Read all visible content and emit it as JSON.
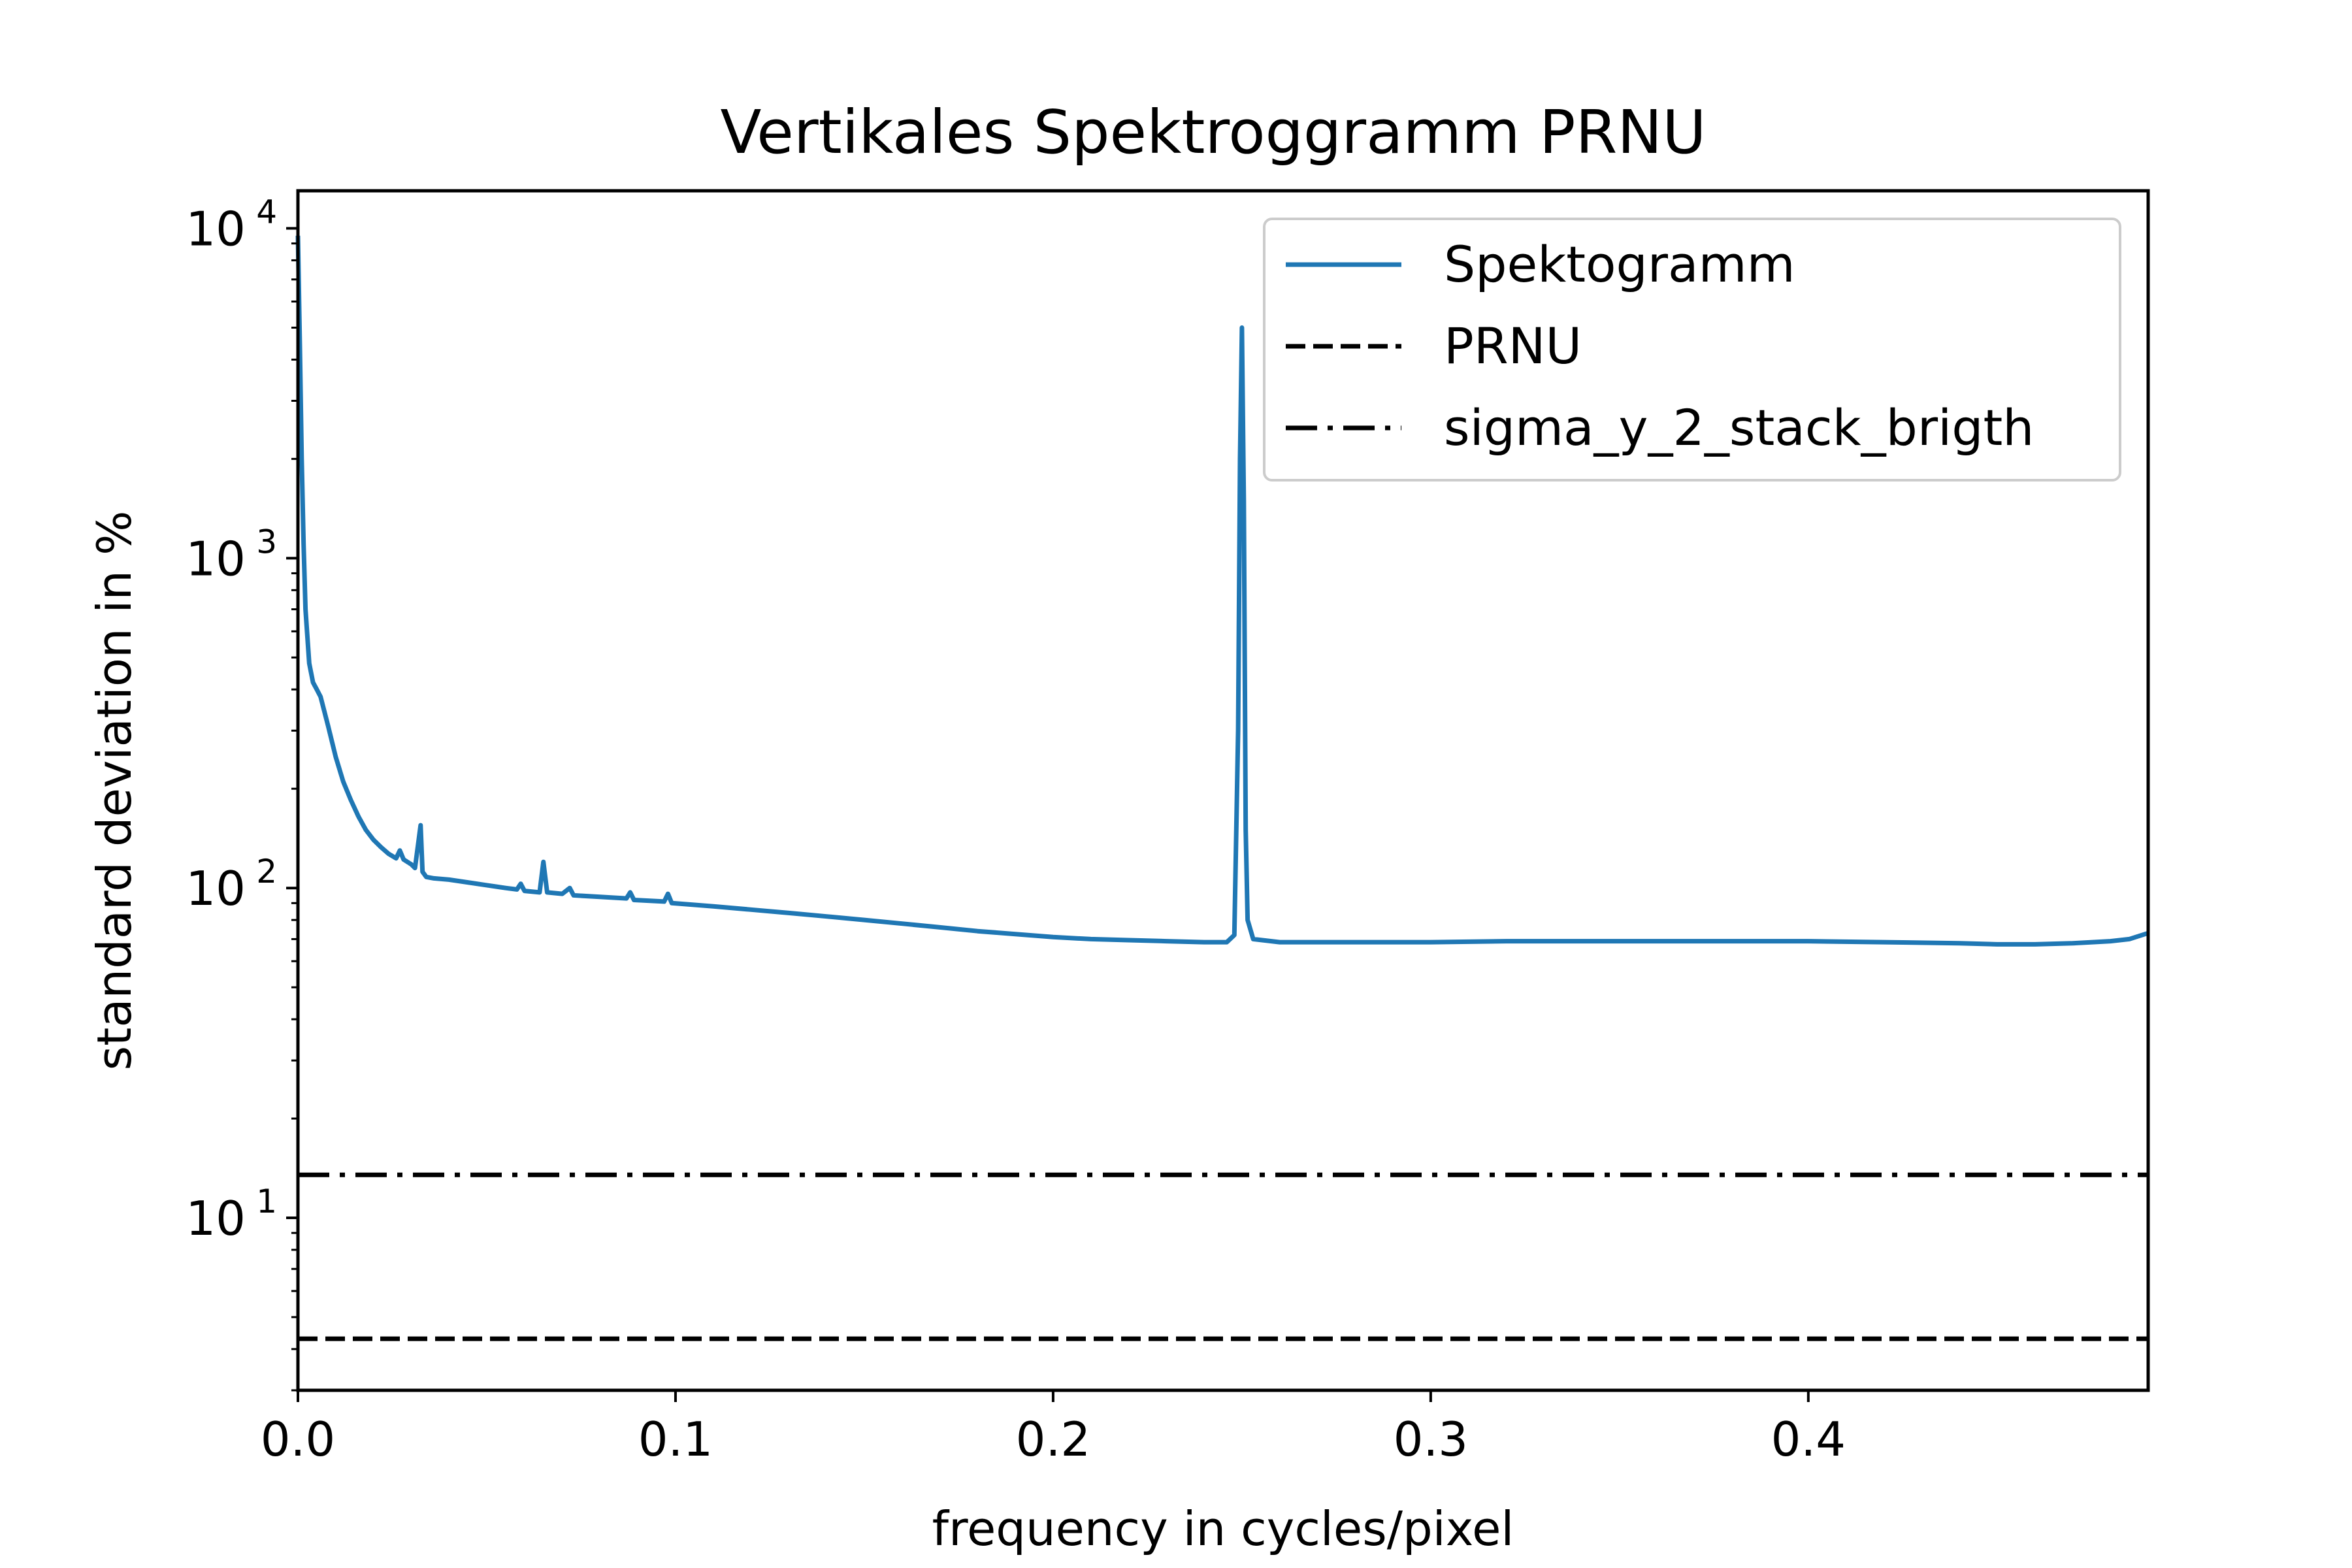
{
  "chart_data": {
    "type": "line",
    "title": "Vertikales Spektroggramm PRNU",
    "xlabel": "frequency in cycles/pixel",
    "ylabel": "standard deviation in %",
    "xlim": [
      0,
      0.49
    ],
    "ylim": [
      3,
      13000
    ],
    "yscale": "log",
    "grid": false,
    "legend_position": "top-right",
    "x_ticks": [
      {
        "value": 0.0,
        "label": "0.0"
      },
      {
        "value": 0.1,
        "label": "0.1"
      },
      {
        "value": 0.2,
        "label": "0.2"
      },
      {
        "value": 0.3,
        "label": "0.3"
      },
      {
        "value": 0.4,
        "label": "0.4"
      }
    ],
    "y_ticks": [
      {
        "value": 10,
        "base": "10",
        "exp": "1"
      },
      {
        "value": 100,
        "base": "10",
        "exp": "2"
      },
      {
        "value": 1000,
        "base": "10",
        "exp": "3"
      },
      {
        "value": 10000,
        "base": "10",
        "exp": "4"
      }
    ],
    "series": [
      {
        "name": "Spektogramm",
        "style": "solid",
        "color": "#1f77b4",
        "points": [
          [
            0.0,
            9500
          ],
          [
            0.0005,
            4500
          ],
          [
            0.001,
            2000
          ],
          [
            0.0015,
            1100
          ],
          [
            0.002,
            700
          ],
          [
            0.003,
            480
          ],
          [
            0.004,
            420
          ],
          [
            0.005,
            400
          ],
          [
            0.006,
            380
          ],
          [
            0.008,
            310
          ],
          [
            0.01,
            250
          ],
          [
            0.012,
            210
          ],
          [
            0.014,
            185
          ],
          [
            0.016,
            165
          ],
          [
            0.018,
            150
          ],
          [
            0.02,
            140
          ],
          [
            0.022,
            133
          ],
          [
            0.024,
            127
          ],
          [
            0.026,
            123
          ],
          [
            0.027,
            130
          ],
          [
            0.028,
            122
          ],
          [
            0.03,
            118
          ],
          [
            0.031,
            115
          ],
          [
            0.0325,
            155
          ],
          [
            0.033,
            112
          ],
          [
            0.034,
            108
          ],
          [
            0.036,
            107
          ],
          [
            0.04,
            106
          ],
          [
            0.045,
            104
          ],
          [
            0.05,
            102
          ],
          [
            0.055,
            100
          ],
          [
            0.058,
            99
          ],
          [
            0.059,
            103
          ],
          [
            0.06,
            98
          ],
          [
            0.064,
            97
          ],
          [
            0.065,
            120
          ],
          [
            0.066,
            97
          ],
          [
            0.07,
            96
          ],
          [
            0.072,
            100
          ],
          [
            0.073,
            95
          ],
          [
            0.08,
            94
          ],
          [
            0.087,
            93
          ],
          [
            0.088,
            97
          ],
          [
            0.089,
            92
          ],
          [
            0.097,
            91
          ],
          [
            0.098,
            96
          ],
          [
            0.099,
            90
          ],
          [
            0.11,
            88
          ],
          [
            0.12,
            86
          ],
          [
            0.13,
            84
          ],
          [
            0.14,
            82
          ],
          [
            0.15,
            80
          ],
          [
            0.16,
            78
          ],
          [
            0.17,
            76
          ],
          [
            0.18,
            74
          ],
          [
            0.19,
            72.5
          ],
          [
            0.2,
            71
          ],
          [
            0.21,
            70
          ],
          [
            0.22,
            69.5
          ],
          [
            0.23,
            69
          ],
          [
            0.24,
            68.5
          ],
          [
            0.246,
            68.5
          ],
          [
            0.248,
            72
          ],
          [
            0.249,
            300
          ],
          [
            0.2495,
            2000
          ],
          [
            0.25,
            5000
          ],
          [
            0.2505,
            1500
          ],
          [
            0.251,
            150
          ],
          [
            0.2515,
            80
          ],
          [
            0.253,
            70
          ],
          [
            0.26,
            68.5
          ],
          [
            0.28,
            68.5
          ],
          [
            0.3,
            68.5
          ],
          [
            0.32,
            69
          ],
          [
            0.34,
            69
          ],
          [
            0.36,
            69
          ],
          [
            0.38,
            69
          ],
          [
            0.4,
            69
          ],
          [
            0.42,
            68.5
          ],
          [
            0.44,
            68
          ],
          [
            0.45,
            67.5
          ],
          [
            0.46,
            67.5
          ],
          [
            0.47,
            68
          ],
          [
            0.48,
            69
          ],
          [
            0.485,
            70
          ],
          [
            0.49,
            73
          ]
        ]
      },
      {
        "name": "PRNU",
        "style": "dashed",
        "color": "#000000",
        "points": [
          [
            0.0,
            4.3
          ],
          [
            0.49,
            4.3
          ]
        ]
      },
      {
        "name": "sigma_y_2_stack_brigth",
        "style": "dashdot",
        "color": "#000000",
        "points": [
          [
            0.0,
            13.5
          ],
          [
            0.49,
            13.5
          ]
        ]
      }
    ]
  }
}
